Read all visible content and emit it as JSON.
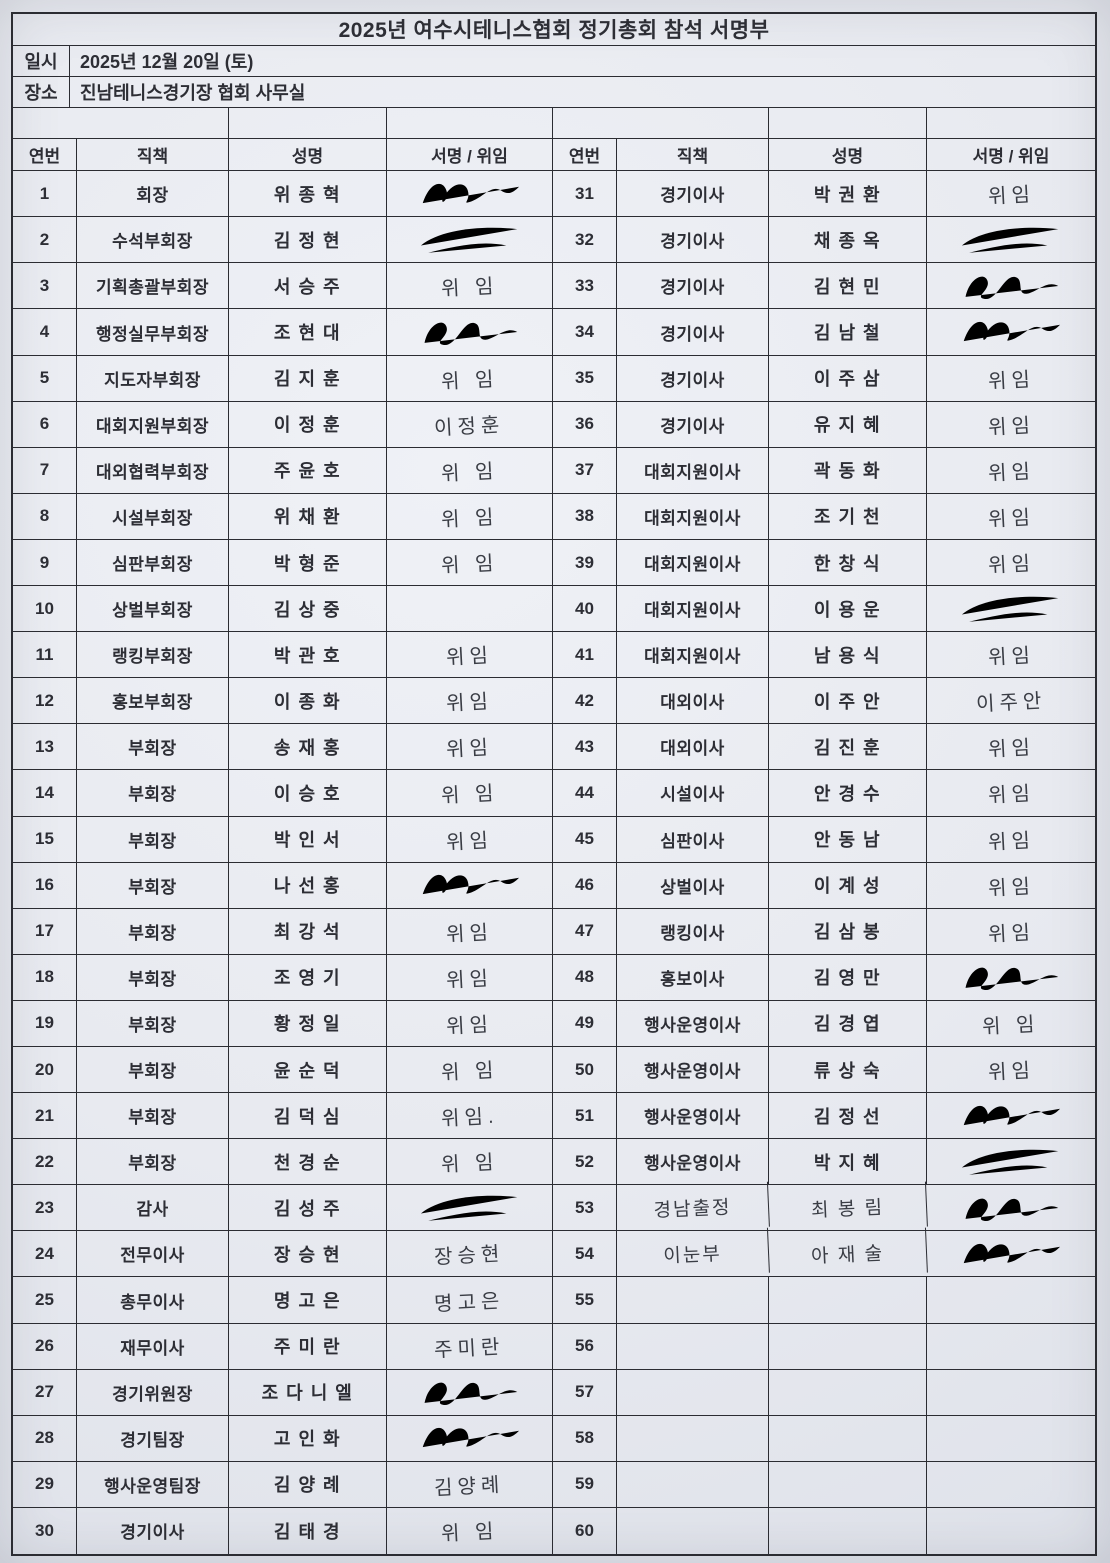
{
  "title": "2025년 여수시테니스협회 정기총회 참석 서명부",
  "info": {
    "date_label": "일시",
    "date_value": "2025년 12월 20일 (토)",
    "place_label": "장소",
    "place_value": "진남테니스경기장 협회 사무실"
  },
  "header": {
    "no": "연번",
    "position": "직책",
    "name": "성명",
    "sign": "서명 / 위임"
  },
  "colors": {
    "paper": "#e9ebf1",
    "table_line": "#2b2c32",
    "printed_ink": "#2d2e35",
    "pen_ink": "#3a3d45"
  },
  "rows_left": [
    {
      "no": "1",
      "position": "회장",
      "name": "위 종 혁",
      "sign": "",
      "sig": "v1"
    },
    {
      "no": "2",
      "position": "수석부회장",
      "name": "김 정 현",
      "sign": "",
      "sig": "v2"
    },
    {
      "no": "3",
      "position": "기획총괄부회장",
      "name": "서 승 주",
      "sign": "위 임",
      "sig": ""
    },
    {
      "no": "4",
      "position": "행정실무부회장",
      "name": "조 현 대",
      "sign": "",
      "sig": "v3"
    },
    {
      "no": "5",
      "position": "지도자부회장",
      "name": "김 지 훈",
      "sign": "위 임",
      "sig": ""
    },
    {
      "no": "6",
      "position": "대회지원부회장",
      "name": "이 정 훈",
      "sign": "이정훈",
      "sig": ""
    },
    {
      "no": "7",
      "position": "대외협력부회장",
      "name": "주 윤 호",
      "sign": "위 임",
      "sig": ""
    },
    {
      "no": "8",
      "position": "시설부회장",
      "name": "위 채 환",
      "sign": "위 임",
      "sig": ""
    },
    {
      "no": "9",
      "position": "심판부회장",
      "name": "박 형 준",
      "sign": "위 임",
      "sig": ""
    },
    {
      "no": "10",
      "position": "상벌부회장",
      "name": "김 상 중",
      "sign": "",
      "sig": ""
    },
    {
      "no": "11",
      "position": "랭킹부회장",
      "name": "박 관 호",
      "sign": "위임",
      "sig": ""
    },
    {
      "no": "12",
      "position": "홍보부회장",
      "name": "이 종 화",
      "sign": "위임",
      "sig": ""
    },
    {
      "no": "13",
      "position": "부회장",
      "name": "송 재 홍",
      "sign": "위임",
      "sig": ""
    },
    {
      "no": "14",
      "position": "부회장",
      "name": "이 승 호",
      "sign": "위 임",
      "sig": ""
    },
    {
      "no": "15",
      "position": "부회장",
      "name": "박 인 서",
      "sign": "위임",
      "sig": ""
    },
    {
      "no": "16",
      "position": "부회장",
      "name": "나 선 홍",
      "sign": "",
      "sig": "v1"
    },
    {
      "no": "17",
      "position": "부회장",
      "name": "최 강 석",
      "sign": "위임",
      "sig": ""
    },
    {
      "no": "18",
      "position": "부회장",
      "name": "조 영 기",
      "sign": "위임",
      "sig": ""
    },
    {
      "no": "19",
      "position": "부회장",
      "name": "황 정 일",
      "sign": "위임",
      "sig": ""
    },
    {
      "no": "20",
      "position": "부회장",
      "name": "윤 순 덕",
      "sign": "위 임",
      "sig": ""
    },
    {
      "no": "21",
      "position": "부회장",
      "name": "김 덕 심",
      "sign": "위임.",
      "sig": ""
    },
    {
      "no": "22",
      "position": "부회장",
      "name": "천 경 순",
      "sign": "위 임",
      "sig": ""
    },
    {
      "no": "23",
      "position": "감사",
      "name": "김 성 주",
      "sign": "",
      "sig": "v2"
    },
    {
      "no": "24",
      "position": "전무이사",
      "name": "장 승 현",
      "sign": "장승현",
      "sig": ""
    },
    {
      "no": "25",
      "position": "총무이사",
      "name": "명 고 은",
      "sign": "명고은",
      "sig": ""
    },
    {
      "no": "26",
      "position": "재무이사",
      "name": "주 미 란",
      "sign": "주미란",
      "sig": ""
    },
    {
      "no": "27",
      "position": "경기위원장",
      "name": "조 다 니 엘",
      "sign": "",
      "sig": "v3"
    },
    {
      "no": "28",
      "position": "경기팀장",
      "name": "고 인 화",
      "sign": "",
      "sig": "v1"
    },
    {
      "no": "29",
      "position": "행사운영팀장",
      "name": "김 양 례",
      "sign": "김양례",
      "sig": ""
    },
    {
      "no": "30",
      "position": "경기이사",
      "name": "김 태 경",
      "sign": "위 임",
      "sig": ""
    }
  ],
  "rows_right": [
    {
      "no": "31",
      "position": "경기이사",
      "name": "박 권 환",
      "sign": "위임",
      "sig": ""
    },
    {
      "no": "32",
      "position": "경기이사",
      "name": "채 종 옥",
      "sign": "",
      "sig": "v2"
    },
    {
      "no": "33",
      "position": "경기이사",
      "name": "김 현 민",
      "sign": "",
      "sig": "v3"
    },
    {
      "no": "34",
      "position": "경기이사",
      "name": "김 남 철",
      "sign": "",
      "sig": "v1"
    },
    {
      "no": "35",
      "position": "경기이사",
      "name": "이 주 삼",
      "sign": "위임",
      "sig": ""
    },
    {
      "no": "36",
      "position": "경기이사",
      "name": "유 지 혜",
      "sign": "위임",
      "sig": ""
    },
    {
      "no": "37",
      "position": "대회지원이사",
      "name": "곽 동 화",
      "sign": "위임",
      "sig": ""
    },
    {
      "no": "38",
      "position": "대회지원이사",
      "name": "조 기 천",
      "sign": "위임",
      "sig": ""
    },
    {
      "no": "39",
      "position": "대회지원이사",
      "name": "한 창 식",
      "sign": "위임",
      "sig": ""
    },
    {
      "no": "40",
      "position": "대회지원이사",
      "name": "이 용 운",
      "sign": "",
      "sig": "v2"
    },
    {
      "no": "41",
      "position": "대회지원이사",
      "name": "남 용 식",
      "sign": "위임",
      "sig": ""
    },
    {
      "no": "42",
      "position": "대외이사",
      "name": "이 주 안",
      "sign": "이주안",
      "sig": ""
    },
    {
      "no": "43",
      "position": "대외이사",
      "name": "김 진 훈",
      "sign": "위임",
      "sig": ""
    },
    {
      "no": "44",
      "position": "시설이사",
      "name": "안 경 수",
      "sign": "위임",
      "sig": ""
    },
    {
      "no": "45",
      "position": "심판이사",
      "name": "안 동 남",
      "sign": "위임",
      "sig": ""
    },
    {
      "no": "46",
      "position": "상벌이사",
      "name": "이 계 성",
      "sign": "위임",
      "sig": ""
    },
    {
      "no": "47",
      "position": "랭킹이사",
      "name": "김 삼 봉",
      "sign": "위임",
      "sig": ""
    },
    {
      "no": "48",
      "position": "홍보이사",
      "name": "김 영 만",
      "sign": "",
      "sig": "v3"
    },
    {
      "no": "49",
      "position": "행사운영이사",
      "name": "김 경 엽",
      "sign": "위 임",
      "sig": ""
    },
    {
      "no": "50",
      "position": "행사운영이사",
      "name": "류 상 숙",
      "sign": "위임",
      "sig": ""
    },
    {
      "no": "51",
      "position": "행사운영이사",
      "name": "김 정 선",
      "sign": "",
      "sig": "v1"
    },
    {
      "no": "52",
      "position": "행사운영이사",
      "name": "박 지 혜",
      "sign": "",
      "sig": "v2"
    },
    {
      "no": "53",
      "position": "경남출정",
      "name": "최 봉 림",
      "sign": "",
      "sig": "v3",
      "hand": true
    },
    {
      "no": "54",
      "position": "이눈부",
      "name": "아 재 술",
      "sign": "",
      "sig": "v1",
      "hand": true
    },
    {
      "no": "55",
      "position": "",
      "name": "",
      "sign": "",
      "sig": ""
    },
    {
      "no": "56",
      "position": "",
      "name": "",
      "sign": "",
      "sig": ""
    },
    {
      "no": "57",
      "position": "",
      "name": "",
      "sign": "",
      "sig": ""
    },
    {
      "no": "58",
      "position": "",
      "name": "",
      "sign": "",
      "sig": ""
    },
    {
      "no": "59",
      "position": "",
      "name": "",
      "sign": "",
      "sig": ""
    },
    {
      "no": "60",
      "position": "",
      "name": "",
      "sign": "",
      "sig": ""
    }
  ]
}
